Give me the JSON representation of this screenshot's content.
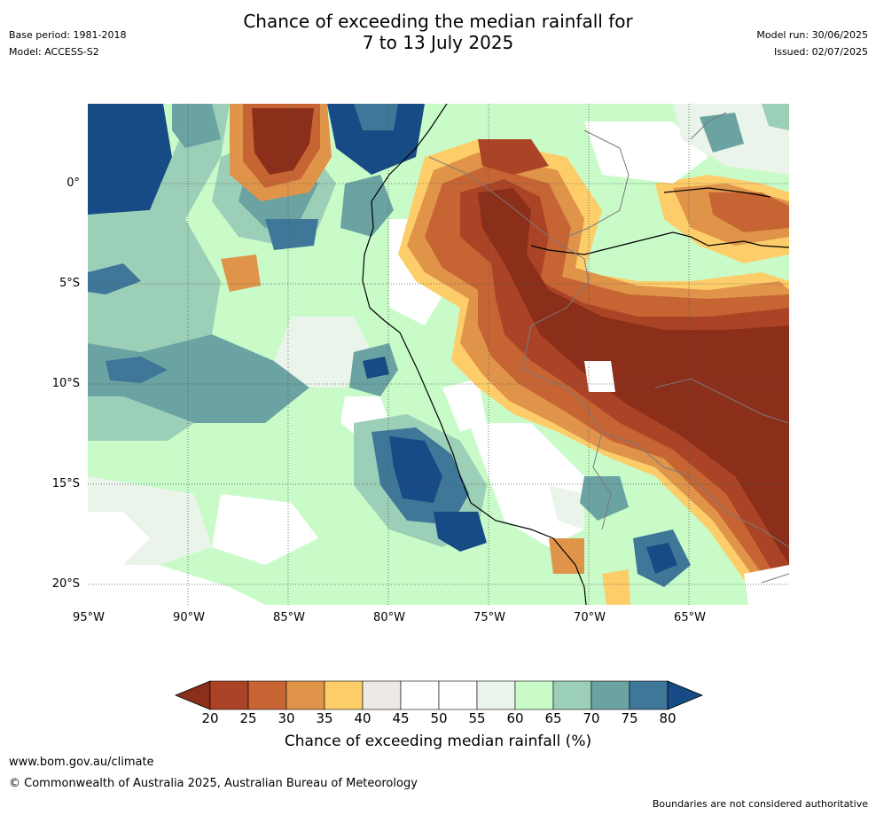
{
  "header": {
    "base_period": "Base period: 1981-2018",
    "model": "Model: ACCESS-S2",
    "title_line1": "Chance of exceeding the median rainfall for",
    "title_line2": "7 to 13 July 2025",
    "model_run": "Model run: 30/06/2025",
    "issued": "Issued: 02/07/2025"
  },
  "map": {
    "lat_labels": [
      "0°",
      "5°S",
      "10°S",
      "15°S",
      "20°S"
    ],
    "lon_labels": [
      "95°W",
      "90°W",
      "85°W",
      "80°W",
      "75°W",
      "70°W",
      "65°W"
    ]
  },
  "colorbar": {
    "ticks": [
      "20",
      "25",
      "30",
      "35",
      "40",
      "45",
      "50",
      "55",
      "60",
      "65",
      "70",
      "75",
      "80"
    ],
    "colors": [
      "#8b2e1a",
      "#ab4426",
      "#c66533",
      "#e0944a",
      "#fdcd6a",
      "#ede9e4",
      "#ffffff",
      "#ffffff",
      "#eaf4ea",
      "#c9fbc9",
      "#9ccfb8",
      "#6aa3a2",
      "#3f7798",
      "#164b86"
    ],
    "label": "Chance of exceeding median rainfall (%)"
  },
  "footer": {
    "website": "www.bom.gov.au/climate",
    "copyright": "© Commonwealth of Australia 2025, Australian Bureau of Meteorology",
    "disclaimer": "Boundaries are not considered authoritative"
  }
}
